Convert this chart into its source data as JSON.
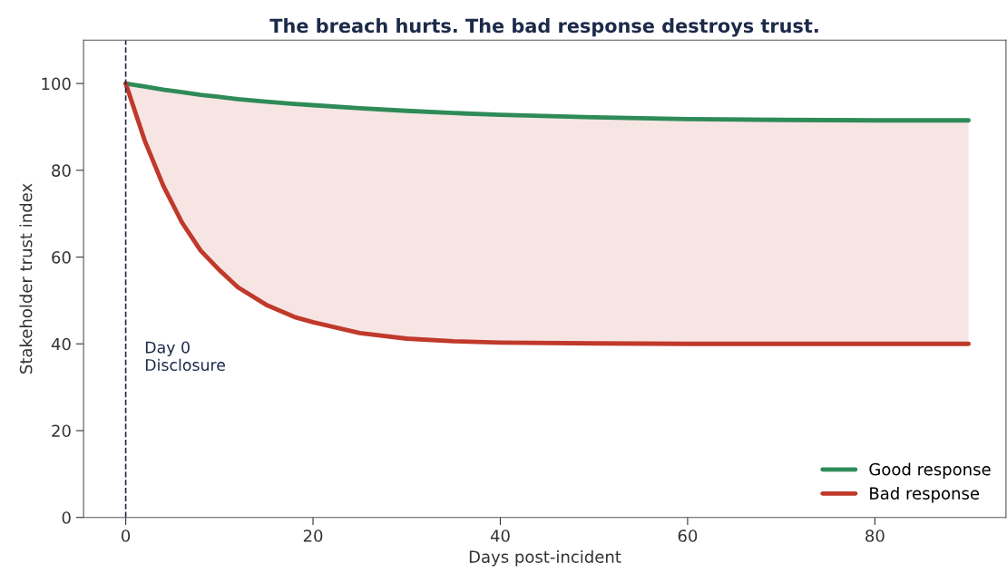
{
  "chart_data": {
    "type": "line",
    "title": "The breach hurts. The bad response destroys trust.",
    "xlabel": "Days post-incident",
    "ylabel": "Stakeholder trust index",
    "x": [
      0,
      2,
      4,
      6,
      8,
      10,
      12,
      15,
      18,
      20,
      25,
      30,
      35,
      40,
      50,
      60,
      70,
      80,
      90
    ],
    "series": [
      {
        "name": "Good response",
        "color": "#2e8b57",
        "values": [
          100,
          99.3,
          98.6,
          98.0,
          97.4,
          96.9,
          96.4,
          95.8,
          95.3,
          95.0,
          94.3,
          93.7,
          93.2,
          92.8,
          92.2,
          91.8,
          91.6,
          91.5,
          91.5
        ]
      },
      {
        "name": "Bad response",
        "color": "#c0392b",
        "values": [
          100,
          87,
          76.5,
          68,
          61.5,
          57,
          53,
          49,
          46.2,
          45,
          42.5,
          41.2,
          40.6,
          40.3,
          40.1,
          40,
          40,
          40,
          40
        ],
        "lower": [
          100,
          87,
          76.5,
          68,
          61.5,
          57,
          53,
          49,
          46.2,
          45,
          42.5,
          41.2,
          40.6,
          40.3,
          40.1,
          40,
          40,
          40,
          40
        ],
        "upper": [
          100,
          99.3,
          98.6,
          98.0,
          97.4,
          96.9,
          96.4,
          95.8,
          95.3,
          95.0,
          94.3,
          93.7,
          93.2,
          92.8,
          92.2,
          91.8,
          91.6,
          91.5,
          91.5
        ]
      }
    ],
    "xlim": [
      -4.5,
      94
    ],
    "ylim": [
      0,
      110
    ],
    "xticks": [
      0,
      20,
      40,
      60,
      80
    ],
    "yticks": [
      0,
      20,
      40,
      60,
      80,
      100
    ],
    "ref_lines": [
      {
        "axis": "x",
        "value": 0,
        "label": "Day 0\nDisclosure",
        "color": "#1c2a4a",
        "line_style": "dashed"
      }
    ],
    "legend": "bottom right",
    "grid": false,
    "marker": "none",
    "line_style": "solid"
  }
}
